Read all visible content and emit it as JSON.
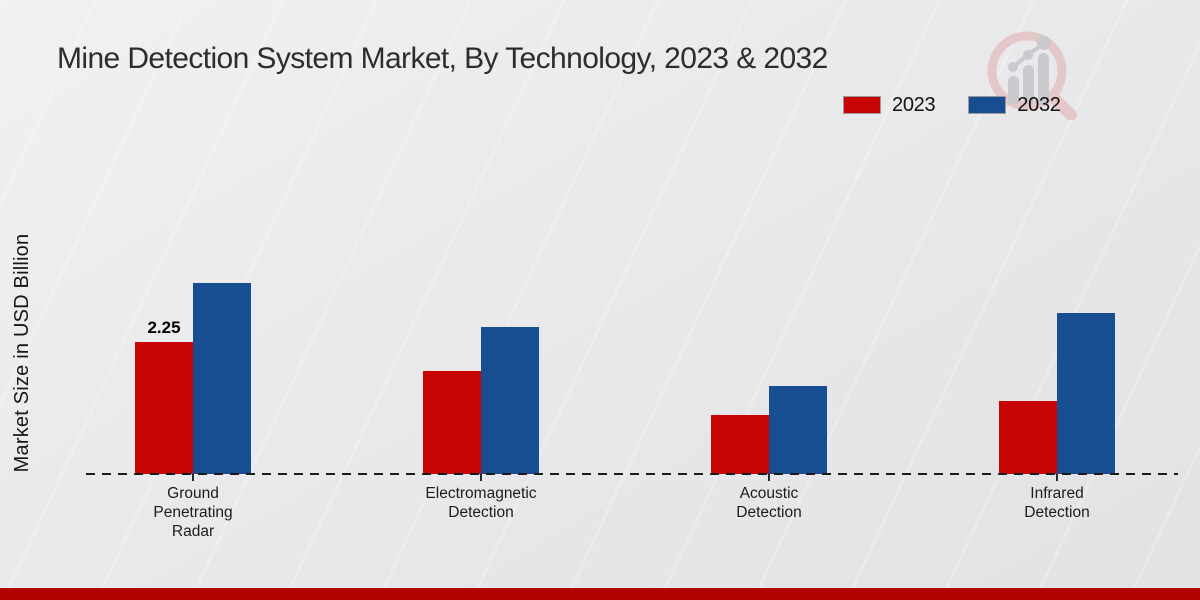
{
  "title": "Mine Detection System Market, By Technology, 2023 & 2032",
  "colors": {
    "series_2023": "#c90404",
    "series_2032": "#174e91",
    "bottom_bar": "#b20303",
    "title_text": "#2d2d2d",
    "baseline": "#1b1b1b"
  },
  "legend": {
    "items": [
      {
        "label": "2023",
        "color": "#c90404"
      },
      {
        "label": "2032",
        "color": "#174e91"
      }
    ],
    "position": "top-right"
  },
  "logo": {
    "name": "market-research-future-watermark"
  },
  "chart_data": {
    "type": "bar",
    "title": "Mine Detection System Market, By Technology, 2023 & 2032",
    "xlabel": "",
    "ylabel": "Market Size in USD Billion",
    "categories": [
      "Ground Penetrating Radar",
      "Electromagnetic Detection",
      "Acoustic Detection",
      "Infrared Detection"
    ],
    "category_display": [
      "Ground\nPenetrating\nRadar",
      "Electromagnetic\nDetection",
      "Acoustic\nDetection",
      "Infrared\nDetection"
    ],
    "series": [
      {
        "name": "2023",
        "color": "#c90404",
        "values": [
          2.25,
          1.75,
          1.0,
          1.25
        ]
      },
      {
        "name": "2032",
        "color": "#174e91",
        "values": [
          3.25,
          2.5,
          1.5,
          2.75
        ]
      }
    ],
    "value_labels": [
      {
        "series_index": 0,
        "category_index": 0,
        "text": "2.25"
      }
    ],
    "ylim": [
      0,
      3.5
    ],
    "grid": false,
    "axis_style": "dashed-baseline-only",
    "legend_position": "top-right"
  }
}
